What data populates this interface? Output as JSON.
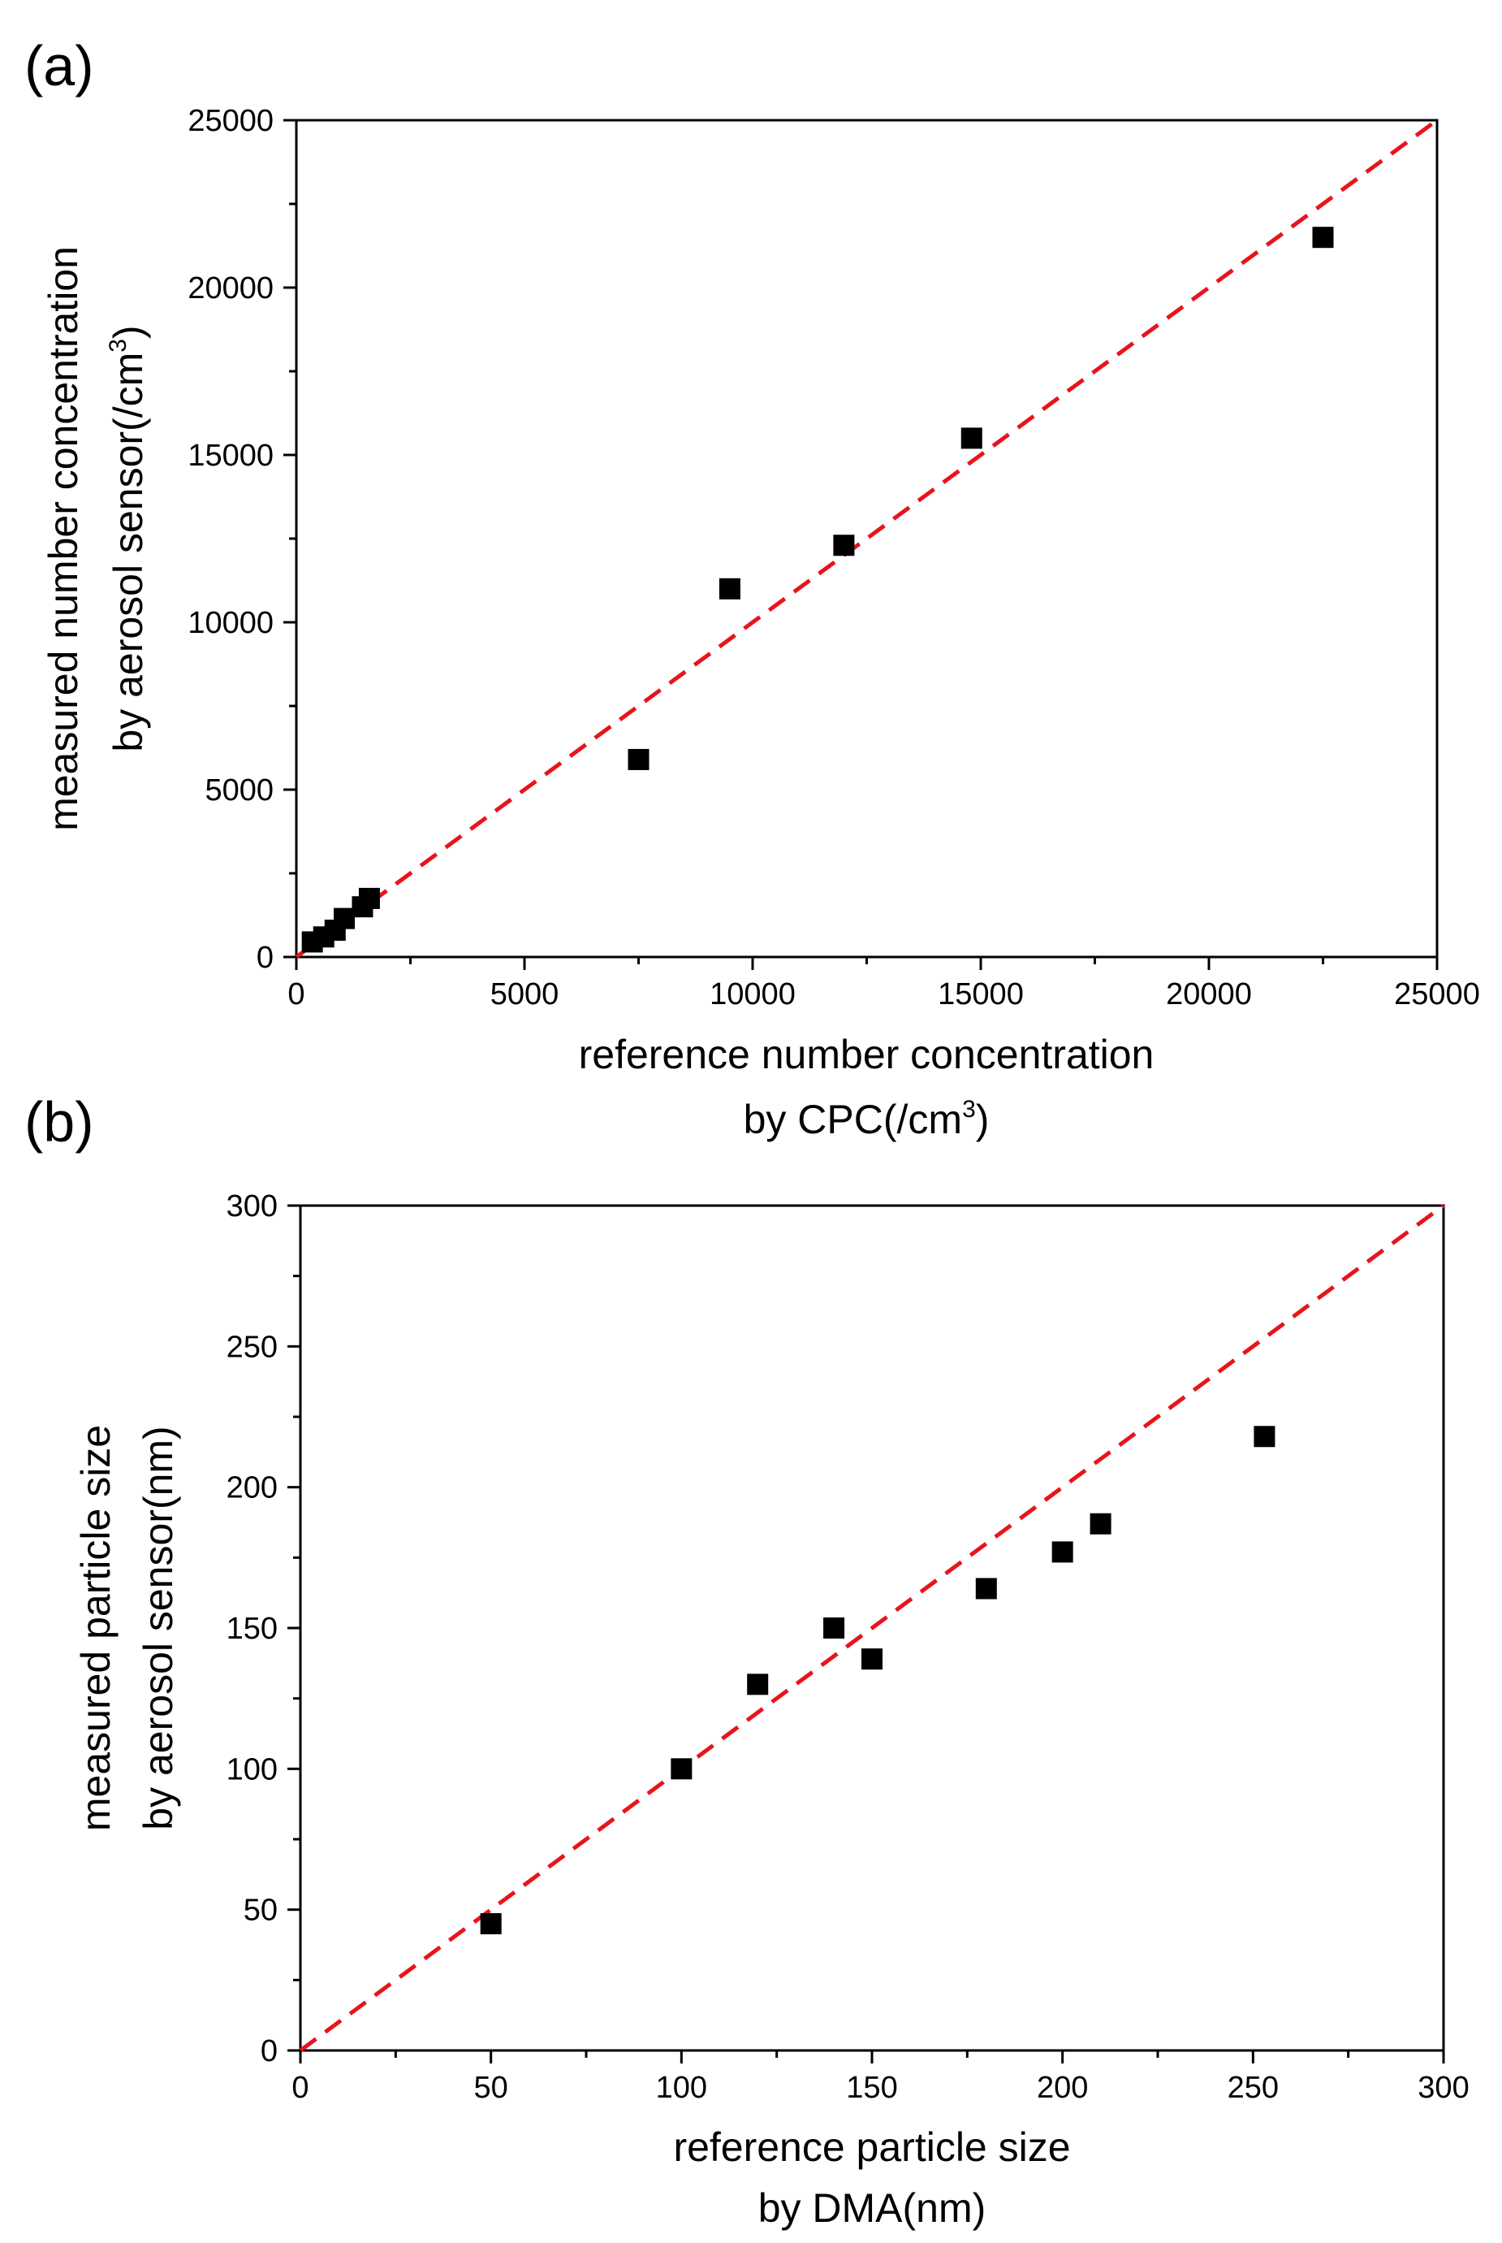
{
  "chart_data": [
    {
      "type": "scatter",
      "panel_label": "(a)",
      "x": [
        350,
        600,
        850,
        1050,
        1450,
        1600,
        7500,
        9500,
        12000,
        14800,
        22500
      ],
      "y": [
        450,
        600,
        800,
        1150,
        1500,
        1750,
        5900,
        11000,
        12300,
        15500,
        21500
      ],
      "xlabel_line1": "reference number concentration",
      "xlabel_line2_pre": "by CPC(/cm",
      "xlabel_line2_sup": "3",
      "xlabel_line2_post": ")",
      "ylabel_line1": "measured number concentration",
      "ylabel_line2_pre": "by aerosol sensor(/cm",
      "ylabel_line2_sup": "3",
      "ylabel_line2_post": ")",
      "xlim": [
        0,
        25000
      ],
      "ylim": [
        0,
        25000
      ],
      "major_ticks": [
        0,
        5000,
        10000,
        15000,
        20000,
        25000
      ],
      "minor_step": 2500,
      "reference_line": {
        "from": [
          0,
          0
        ],
        "to": [
          25000,
          25000
        ],
        "color": "#e8141c",
        "style": "dashed"
      },
      "marker_color": "#000000",
      "grid": false
    },
    {
      "type": "scatter",
      "panel_label": "(b)",
      "x": [
        50,
        100,
        120,
        140,
        150,
        180,
        200,
        210,
        253
      ],
      "y": [
        45,
        100,
        130,
        150,
        139,
        164,
        177,
        187,
        218
      ],
      "xlabel_line1": "reference particle size",
      "xlabel_line2_pre": "by DMA(nm)",
      "xlabel_line2_sup": "",
      "xlabel_line2_post": "",
      "ylabel_line1": "measured particle size",
      "ylabel_line2_pre": "by aerosol sensor(nm)",
      "ylabel_line2_sup": "",
      "ylabel_line2_post": "",
      "xlim": [
        0,
        300
      ],
      "ylim": [
        0,
        300
      ],
      "major_ticks": [
        0,
        50,
        100,
        150,
        200,
        250,
        300
      ],
      "minor_step": 25,
      "reference_line": {
        "from": [
          0,
          0
        ],
        "to": [
          300,
          300
        ],
        "color": "#e8141c",
        "style": "dashed"
      },
      "marker_color": "#000000",
      "grid": false
    }
  ]
}
